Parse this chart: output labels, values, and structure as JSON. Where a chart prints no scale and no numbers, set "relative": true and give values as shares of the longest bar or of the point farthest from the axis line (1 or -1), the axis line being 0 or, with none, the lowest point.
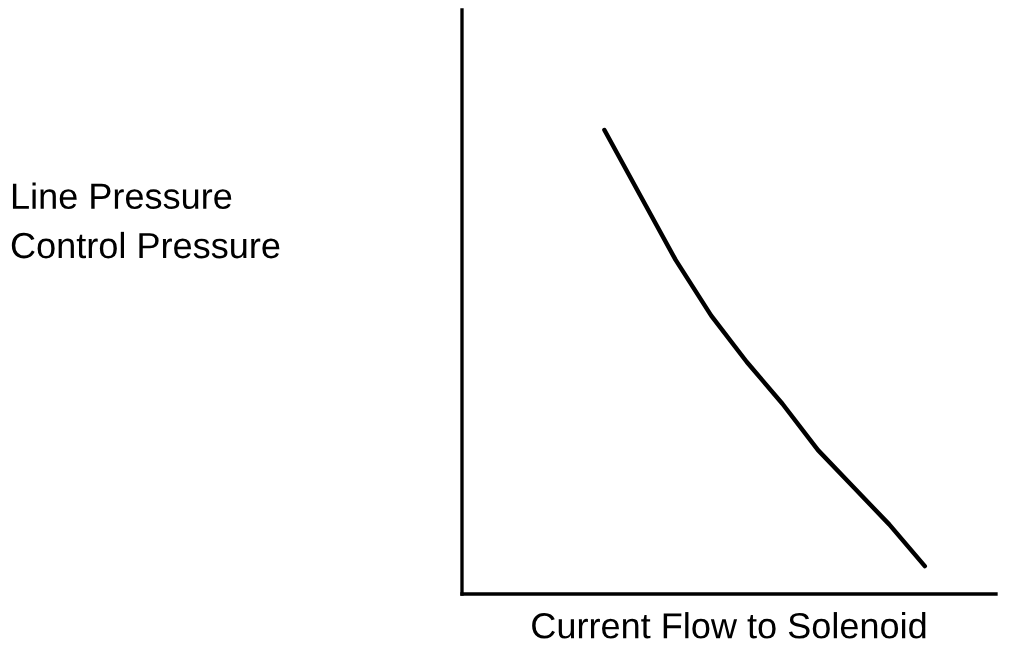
{
  "chart_data": {
    "type": "line",
    "relative": true,
    "xlabel": "Current Flow to Solenoid",
    "annotations": [
      "Line Pressure\nControl Pressure"
    ],
    "categories": [
      null,
      null,
      null,
      null,
      null,
      null,
      null,
      null,
      null,
      null,
      null,
      null,
      null,
      null,
      null,
      null
    ],
    "series": [
      {
        "color": "#000000",
        "values": [
          null,
          null,
          null,
          null,
          1,
          0.86,
          0.72,
          0.6,
          0.5,
          0.41,
          0.31,
          0.23,
          0.15,
          0.06,
          null,
          null
        ]
      }
    ],
    "grid": false,
    "legend": false,
    "marker": "none",
    "line_style": "solid"
  }
}
